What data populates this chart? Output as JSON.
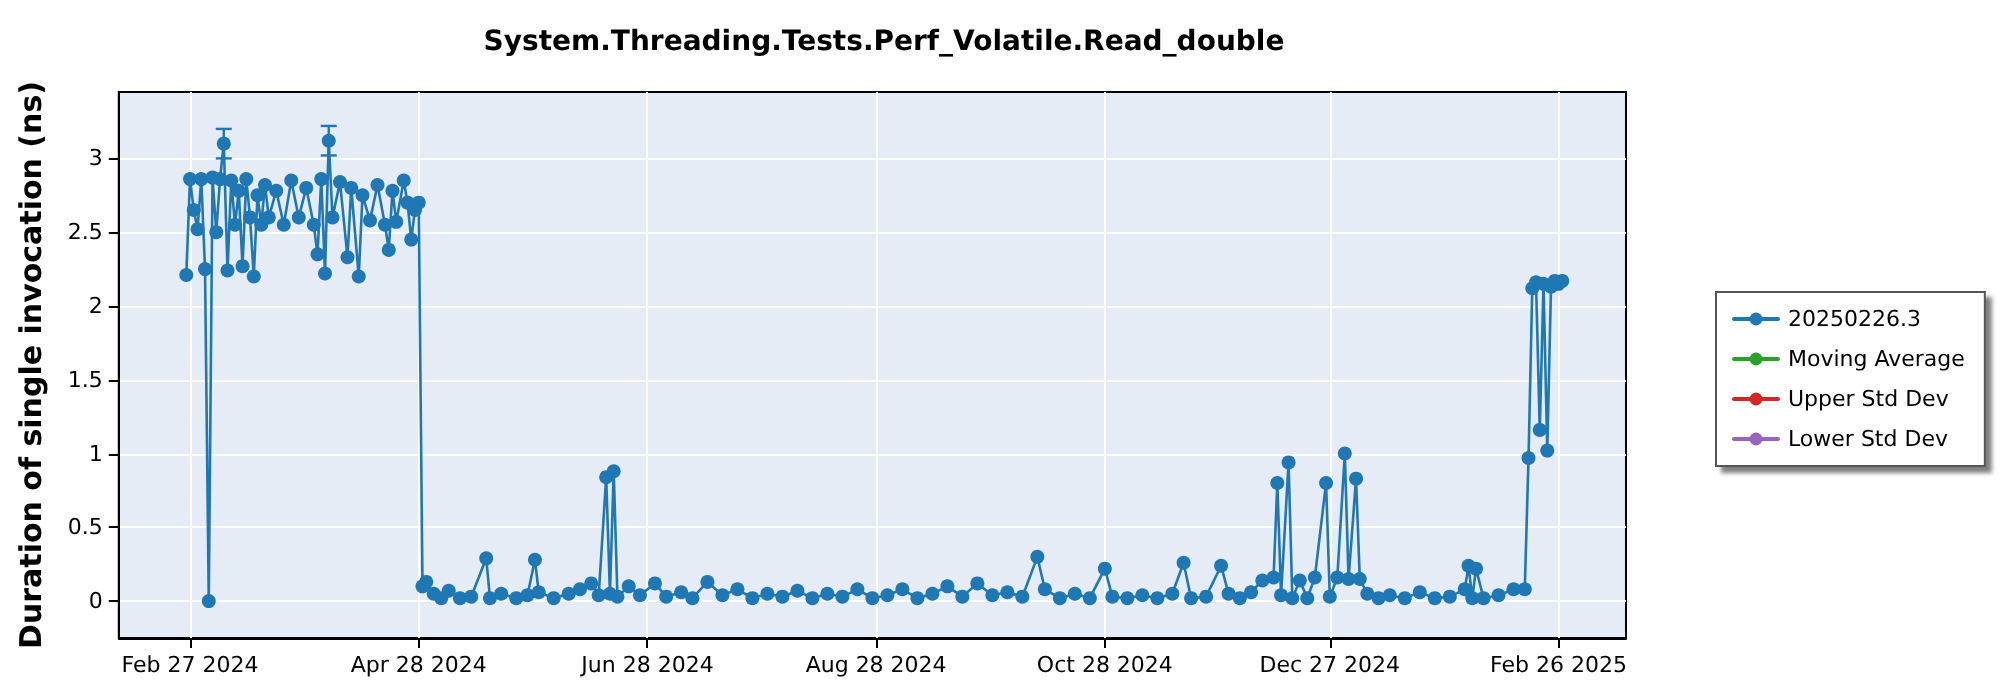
{
  "chart_data": {
    "type": "line",
    "title": "System.Threading.Tests.Perf_Volatile.Read_double",
    "ylabel": "Duration of single invocation (ns)",
    "xlim": [
      "2024-02-08",
      "2025-03-16"
    ],
    "ylim": [
      -0.25,
      3.45
    ],
    "xticks": [
      {
        "value": "2024-02-27",
        "label": "Feb 27 2024"
      },
      {
        "value": "2024-04-28",
        "label": "Apr 28 2024"
      },
      {
        "value": "2024-06-28",
        "label": "Jun 28 2024"
      },
      {
        "value": "2024-08-28",
        "label": "Aug 28 2024"
      },
      {
        "value": "2024-10-28",
        "label": "Oct 28 2024"
      },
      {
        "value": "2024-12-27",
        "label": "Dec 27 2024"
      },
      {
        "value": "2025-02-26",
        "label": "Feb 26 2025"
      }
    ],
    "yticks": [
      0,
      0.5,
      1,
      1.5,
      2,
      2.5,
      3
    ],
    "grid": true,
    "legend": "right",
    "marker": "circle",
    "line_style": "solid",
    "series": [
      {
        "name": "20250226.3",
        "color": "#1f77b4",
        "x": [
          "2024-02-26",
          "2024-02-27",
          "2024-02-28",
          "2024-02-29",
          "2024-03-01",
          "2024-03-02",
          "2024-03-03",
          "2024-03-04",
          "2024-03-05",
          "2024-03-06",
          "2024-03-07",
          "2024-03-08",
          "2024-03-09",
          "2024-03-10",
          "2024-03-11",
          "2024-03-12",
          "2024-03-13",
          "2024-03-14",
          "2024-03-15",
          "2024-03-16",
          "2024-03-17",
          "2024-03-18",
          "2024-03-19",
          "2024-03-21",
          "2024-03-23",
          "2024-03-25",
          "2024-03-27",
          "2024-03-29",
          "2024-03-31",
          "2024-04-01",
          "2024-04-02",
          "2024-04-03",
          "2024-04-04",
          "2024-04-05",
          "2024-04-07",
          "2024-04-09",
          "2024-04-10",
          "2024-04-12",
          "2024-04-13",
          "2024-04-15",
          "2024-04-17",
          "2024-04-19",
          "2024-04-20",
          "2024-04-21",
          "2024-04-22",
          "2024-04-24",
          "2024-04-25",
          "2024-04-26",
          "2024-04-27",
          "2024-04-28",
          "2024-04-29",
          "2024-04-30",
          "2024-05-02",
          "2024-05-04",
          "2024-05-06",
          "2024-05-09",
          "2024-05-12",
          "2024-05-16",
          "2024-05-17",
          "2024-05-20",
          "2024-05-24",
          "2024-05-27",
          "2024-05-29",
          "2024-05-30",
          "2024-06-03",
          "2024-06-07",
          "2024-06-10",
          "2024-06-13",
          "2024-06-15",
          "2024-06-17",
          "2024-06-18",
          "2024-06-19",
          "2024-06-20",
          "2024-06-23",
          "2024-06-26",
          "2024-06-30",
          "2024-07-03",
          "2024-07-07",
          "2024-07-10",
          "2024-07-14",
          "2024-07-18",
          "2024-07-22",
          "2024-07-26",
          "2024-07-30",
          "2024-08-03",
          "2024-08-07",
          "2024-08-11",
          "2024-08-15",
          "2024-08-19",
          "2024-08-23",
          "2024-08-27",
          "2024-08-31",
          "2024-09-04",
          "2024-09-08",
          "2024-09-12",
          "2024-09-16",
          "2024-09-20",
          "2024-09-24",
          "2024-09-28",
          "2024-10-02",
          "2024-10-06",
          "2024-10-10",
          "2024-10-12",
          "2024-10-16",
          "2024-10-20",
          "2024-10-24",
          "2024-10-28",
          "2024-10-30",
          "2024-11-03",
          "2024-11-07",
          "2024-11-11",
          "2024-11-15",
          "2024-11-18",
          "2024-11-20",
          "2024-11-24",
          "2024-11-28",
          "2024-11-30",
          "2024-12-03",
          "2024-12-06",
          "2024-12-09",
          "2024-12-12",
          "2024-12-13",
          "2024-12-14",
          "2024-12-16",
          "2024-12-17",
          "2024-12-19",
          "2024-12-21",
          "2024-12-23",
          "2024-12-26",
          "2024-12-27",
          "2024-12-29",
          "2024-12-31",
          "2025-01-01",
          "2025-01-03",
          "2025-01-04",
          "2025-01-06",
          "2025-01-09",
          "2025-01-12",
          "2025-01-16",
          "2025-01-20",
          "2025-01-24",
          "2025-01-28",
          "2025-02-01",
          "2025-02-02",
          "2025-02-03",
          "2025-02-04",
          "2025-02-06",
          "2025-02-10",
          "2025-02-14",
          "2025-02-17",
          "2025-02-18",
          "2025-02-19",
          "2025-02-20",
          "2025-02-21",
          "2025-02-22",
          "2025-02-23",
          "2025-02-24",
          "2025-02-25",
          "2025-02-26",
          "2025-02-27"
        ],
        "values": [
          2.21,
          2.86,
          2.65,
          2.52,
          2.86,
          2.25,
          0.0,
          2.87,
          2.5,
          2.86,
          3.1,
          2.24,
          2.85,
          2.55,
          2.78,
          2.27,
          2.86,
          2.6,
          2.2,
          2.75,
          2.55,
          2.82,
          2.6,
          2.78,
          2.55,
          2.85,
          2.6,
          2.8,
          2.55,
          2.35,
          2.86,
          2.22,
          3.12,
          2.6,
          2.84,
          2.33,
          2.8,
          2.2,
          2.75,
          2.58,
          2.82,
          2.55,
          2.38,
          2.78,
          2.57,
          2.85,
          2.7,
          2.45,
          2.65,
          2.7,
          0.1,
          0.13,
          0.05,
          0.02,
          0.07,
          0.02,
          0.03,
          0.29,
          0.02,
          0.05,
          0.02,
          0.04,
          0.28,
          0.06,
          0.02,
          0.05,
          0.08,
          0.12,
          0.04,
          0.84,
          0.05,
          0.88,
          0.03,
          0.1,
          0.04,
          0.12,
          0.03,
          0.06,
          0.02,
          0.13,
          0.04,
          0.08,
          0.02,
          0.05,
          0.03,
          0.07,
          0.02,
          0.05,
          0.03,
          0.08,
          0.02,
          0.04,
          0.08,
          0.02,
          0.05,
          0.1,
          0.03,
          0.12,
          0.04,
          0.06,
          0.03,
          0.3,
          0.08,
          0.02,
          0.05,
          0.02,
          0.22,
          0.03,
          0.02,
          0.04,
          0.02,
          0.05,
          0.26,
          0.02,
          0.03,
          0.24,
          0.05,
          0.02,
          0.06,
          0.14,
          0.16,
          0.8,
          0.04,
          0.94,
          0.02,
          0.14,
          0.02,
          0.16,
          0.8,
          0.03,
          0.16,
          1.0,
          0.15,
          0.83,
          0.15,
          0.05,
          0.02,
          0.04,
          0.02,
          0.06,
          0.02,
          0.03,
          0.08,
          0.24,
          0.02,
          0.22,
          0.02,
          0.04,
          0.08,
          0.08,
          0.97,
          2.12,
          2.16,
          1.16,
          2.15,
          1.02,
          2.13,
          2.17,
          2.15,
          2.17
        ],
        "errors": [
          null,
          null,
          null,
          null,
          null,
          null,
          null,
          null,
          null,
          null,
          0.1,
          null,
          null,
          null,
          null,
          null,
          null,
          null,
          null,
          null,
          null,
          null,
          null,
          null,
          null,
          null,
          null,
          null,
          null,
          null,
          null,
          null,
          0.1,
          null,
          null,
          null,
          null,
          null,
          null,
          null,
          null,
          null,
          null,
          null,
          null,
          null,
          null,
          null,
          null,
          null,
          null,
          null,
          null,
          null,
          null,
          null,
          null,
          null,
          null,
          null,
          null,
          null,
          null,
          null,
          null,
          null,
          null,
          null,
          null,
          null,
          null,
          null,
          null,
          null,
          null,
          null,
          null,
          null,
          null,
          null,
          null,
          null,
          null,
          null,
          null,
          null,
          null,
          null,
          null,
          null,
          null,
          null,
          null,
          null,
          null,
          null,
          null,
          null,
          null,
          null,
          null,
          null,
          null,
          null,
          null,
          null,
          null,
          null,
          null,
          null,
          null,
          null,
          null,
          null,
          null,
          null,
          null,
          null,
          null,
          null,
          null,
          null,
          null,
          null,
          null,
          null,
          null,
          null,
          null,
          null,
          null,
          null,
          null,
          null,
          null,
          null,
          null,
          null,
          null,
          null,
          null,
          null,
          null,
          null,
          null,
          null,
          null,
          null,
          null,
          null,
          null,
          null,
          null,
          null,
          null,
          null,
          null,
          null,
          null,
          null
        ]
      },
      {
        "name": "Moving Average",
        "color": "#2ca02c"
      },
      {
        "name": "Upper Std Dev",
        "color": "#d62728"
      },
      {
        "name": "Lower Std Dev",
        "color": "#9467bd"
      }
    ]
  }
}
